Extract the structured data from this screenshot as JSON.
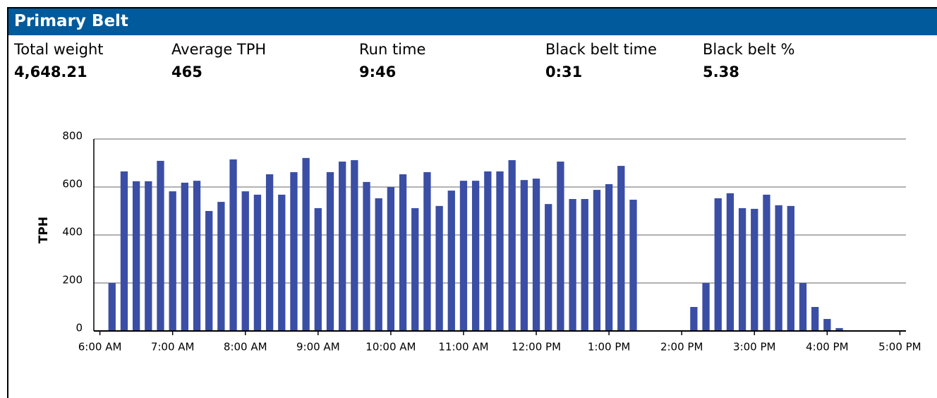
{
  "header": {
    "title": "Primary Belt"
  },
  "stats": [
    {
      "label": "Total weight",
      "value": "4,648.21"
    },
    {
      "label": "Average TPH",
      "value": "465"
    },
    {
      "label": "Run time",
      "value": "9:46"
    },
    {
      "label": "Black belt time",
      "value": "0:31"
    },
    {
      "label": "Black belt %",
      "value": "5.38"
    }
  ],
  "chart_data": {
    "type": "bar",
    "y_label": "TPH",
    "color": "#3b4ea5",
    "grid": true,
    "ylim": [
      0,
      800
    ],
    "yticks": [
      0,
      200,
      400,
      600,
      800
    ],
    "categories": [
      "6:00 AM",
      null,
      null,
      null,
      null,
      null,
      "7:00 AM",
      null,
      null,
      null,
      null,
      null,
      "8:00 AM",
      null,
      null,
      null,
      null,
      null,
      "9:00 AM",
      null,
      null,
      null,
      null,
      null,
      "10:00 AM",
      null,
      null,
      null,
      null,
      null,
      "11:00 AM",
      null,
      null,
      null,
      null,
      null,
      "12:00 PM",
      null,
      null,
      null,
      null,
      null,
      "1:00 PM",
      null,
      null,
      null,
      null,
      null,
      "2:00 PM",
      null,
      null,
      null,
      null,
      null,
      "3:00 PM",
      null,
      null,
      null,
      null,
      null,
      "4:00 PM",
      null,
      null,
      null,
      null,
      null,
      "5:00 PM"
    ],
    "values": [
      null,
      200,
      665,
      624,
      624,
      709,
      582,
      618,
      626,
      500,
      538,
      715,
      582,
      568,
      653,
      568,
      662,
      721,
      512,
      662,
      706,
      712,
      621,
      553,
      600,
      653,
      512,
      662,
      521,
      585,
      626,
      626,
      665,
      665,
      712,
      629,
      635,
      529,
      706,
      550,
      550,
      588,
      612,
      688,
      547,
      null,
      null,
      null,
      null,
      100,
      200,
      553,
      574,
      512,
      509,
      568,
      524,
      521,
      200,
      100,
      50,
      12,
      null,
      null,
      null,
      null,
      null
    ]
  }
}
